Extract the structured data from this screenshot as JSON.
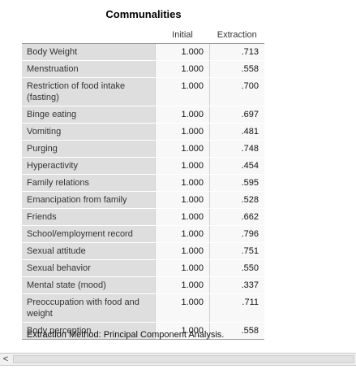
{
  "title": "Communalities",
  "columns": {
    "label": "",
    "initial": "Initial",
    "extraction": "Extraction"
  },
  "rows": [
    {
      "label": "Body Weight",
      "initial": "1.000",
      "extraction": ".713"
    },
    {
      "label": "Menstruation",
      "initial": "1.000",
      "extraction": ".558"
    },
    {
      "label": "Restriction of food intake (fasting)",
      "initial": "1.000",
      "extraction": ".700"
    },
    {
      "label": "Binge eating",
      "initial": "1.000",
      "extraction": ".697"
    },
    {
      "label": "Vomiting",
      "initial": "1.000",
      "extraction": ".481"
    },
    {
      "label": "Purging",
      "initial": "1.000",
      "extraction": ".748"
    },
    {
      "label": "Hyperactivity",
      "initial": "1.000",
      "extraction": ".454"
    },
    {
      "label": "Family relations",
      "initial": "1.000",
      "extraction": ".595"
    },
    {
      "label": "Emancipation from family",
      "initial": "1.000",
      "extraction": ".528"
    },
    {
      "label": "Friends",
      "initial": "1.000",
      "extraction": ".662"
    },
    {
      "label": "School/employment record",
      "initial": "1.000",
      "extraction": ".796"
    },
    {
      "label": "Sexual attitude",
      "initial": "1.000",
      "extraction": ".751"
    },
    {
      "label": "Sexual behavior",
      "initial": "1.000",
      "extraction": ".550"
    },
    {
      "label": "Mental state (mood)",
      "initial": "1.000",
      "extraction": ".337"
    },
    {
      "label": "Preoccupation with food and weight",
      "initial": "1.000",
      "extraction": ".711"
    },
    {
      "label": "Body perception",
      "initial": "1.000",
      "extraction": ".558"
    }
  ],
  "footnote": "Extraction Method: Principal Component Analysis.",
  "scrollbar": {
    "left_arrow": "<"
  }
}
